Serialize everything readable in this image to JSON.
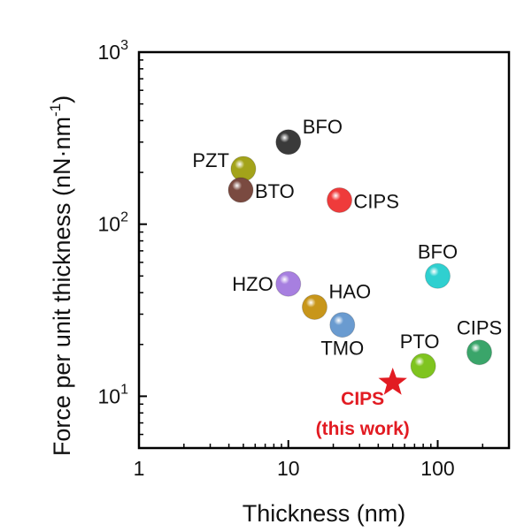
{
  "chart_data": {
    "type": "scatter",
    "xlabel": "Thickness (nm)",
    "ylabel": "Force per unit thickness (nN·nm",
    "ylabel_sup": "-1",
    "ylabel_close": ")",
    "xscale": "log",
    "yscale": "log",
    "xlim": [
      1,
      300
    ],
    "ylim": [
      5,
      1000
    ],
    "x_ticks": [
      {
        "value": 1,
        "label": "1"
      },
      {
        "value": 10,
        "label": "10"
      },
      {
        "value": 100,
        "label": "100"
      }
    ],
    "y_ticks": [
      {
        "value": 10,
        "base": "10",
        "exp": "1"
      },
      {
        "value": 100,
        "base": "10",
        "exp": "2"
      },
      {
        "value": 1000,
        "base": "10",
        "exp": "3"
      }
    ],
    "grid": false,
    "points": [
      {
        "label": "BFO",
        "x": 10,
        "y": 300,
        "color": "#3a3a3a",
        "label_pos": "right-up"
      },
      {
        "label": "PZT",
        "x": 5,
        "y": 210,
        "color": "#a3a31a",
        "label_pos": "left-up"
      },
      {
        "label": "BTO",
        "x": 4.8,
        "y": 158,
        "color": "#7a4a40",
        "label_pos": "right"
      },
      {
        "label": "CIPS",
        "x": 22,
        "y": 138,
        "color": "#ef3b3b",
        "label_pos": "right"
      },
      {
        "label": "BFO",
        "x": 100,
        "y": 50,
        "color": "#2fd0d0",
        "label_pos": "above"
      },
      {
        "label": "HZO",
        "x": 10,
        "y": 45,
        "color": "#a77fe0",
        "label_pos": "left"
      },
      {
        "label": "HAO",
        "x": 15,
        "y": 33,
        "color": "#c8961a",
        "label_pos": "right-up"
      },
      {
        "label": "TMO",
        "x": 23,
        "y": 26,
        "color": "#6a9bd0",
        "label_pos": "below"
      },
      {
        "label": "PTO",
        "x": 80,
        "y": 15,
        "color": "#7fc41f",
        "label_pos": "above-left"
      },
      {
        "label": "CIPS",
        "x": 190,
        "y": 18,
        "color": "#3aa56a",
        "label_pos": "above"
      }
    ],
    "highlight": {
      "label_line1": "CIPS",
      "label_line2": "(this work)",
      "x": 50,
      "y": 12,
      "marker": "star",
      "color": "#e21b22"
    }
  }
}
